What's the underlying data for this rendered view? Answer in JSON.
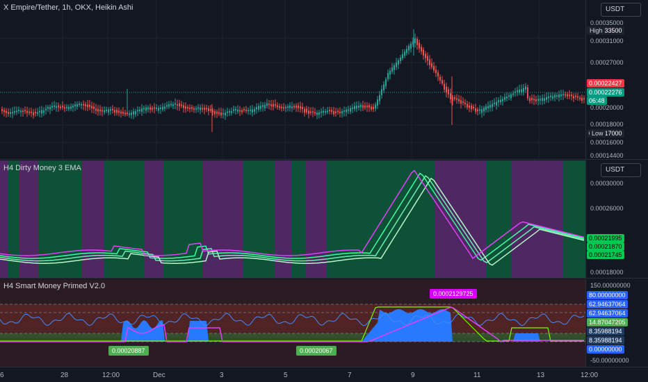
{
  "main": {
    "title": "X Empire/Tether, 1h, OKX, Heikin Ashi",
    "unit": "USDT",
    "ticks": [
      "0.00035000",
      "0.00031000",
      "0.00027000",
      "0.00020000",
      "0.00018000",
      "0.00016000",
      "0.00014400"
    ],
    "high_label": "High",
    "high_value": "0.00033500",
    "low_label": "Low",
    "low_value": "0.00017000",
    "last_red": "0.00022427",
    "last_green": "0.00022276",
    "countdown": "06:48",
    "colors": {
      "up": "#26a69a",
      "down": "#ef5350"
    }
  },
  "dirty": {
    "title": "H4 Dirty Money 3 EMA",
    "unit": "USDT",
    "ticks": [
      "0.00030000",
      "0.00026000",
      "0.00018000"
    ],
    "values": [
      "0.00021995",
      "0.00021870",
      "0.00021745"
    ],
    "colors": {
      "bull": "#0d5c3a",
      "bear": "#5b2a6e",
      "line_up": "#3dffa0",
      "line_down": "#e040fb"
    }
  },
  "smart": {
    "title": "H4 Smart Money Primed V2.0",
    "ticks_top": "150.00000000",
    "ticks_bottom": "-50.00000000",
    "values": [
      "80.00000000",
      "62.94637064",
      "62.94637064",
      "14.87047205",
      "8.35988194",
      "8.35988194",
      "0.00000000"
    ],
    "callouts": {
      "peak": "0.0002129725",
      "low1": "0.00020887",
      "low2": "0.00020067"
    }
  },
  "time_axis": [
    "6",
    "28",
    "12:00",
    "Dec",
    "3",
    "5",
    "7",
    "9",
    "11",
    "13",
    "12:00"
  ]
}
